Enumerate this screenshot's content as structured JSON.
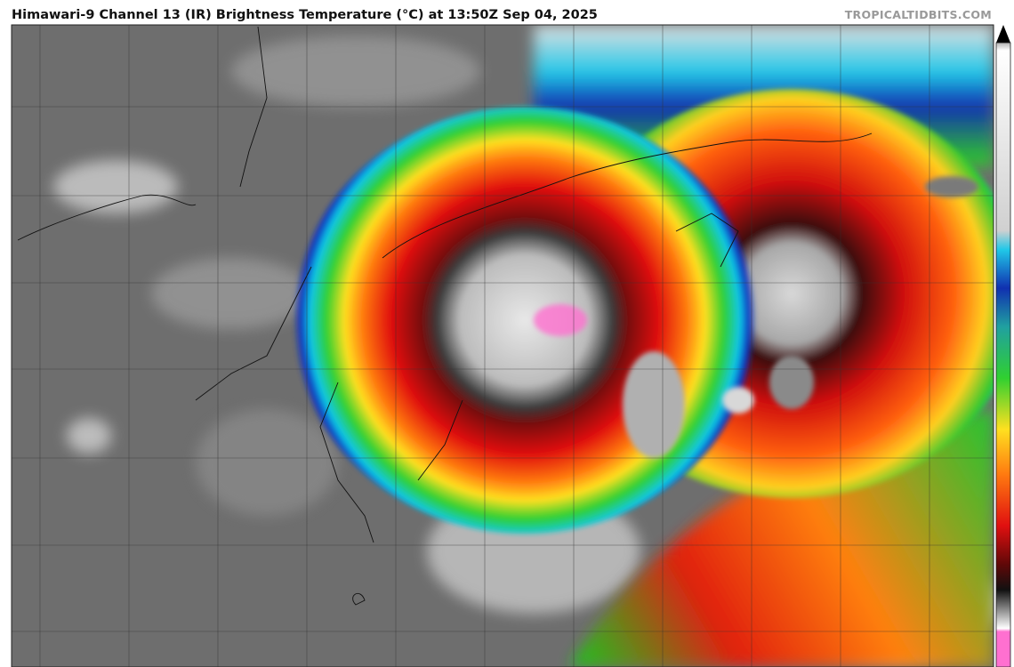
{
  "header": {
    "title": "Himawari-9 Channel 13 (IR) Brightness Temperature (°C) at 13:50Z Sep 04, 2025",
    "credit": "TROPICALTIDBITS.COM"
  }
}
